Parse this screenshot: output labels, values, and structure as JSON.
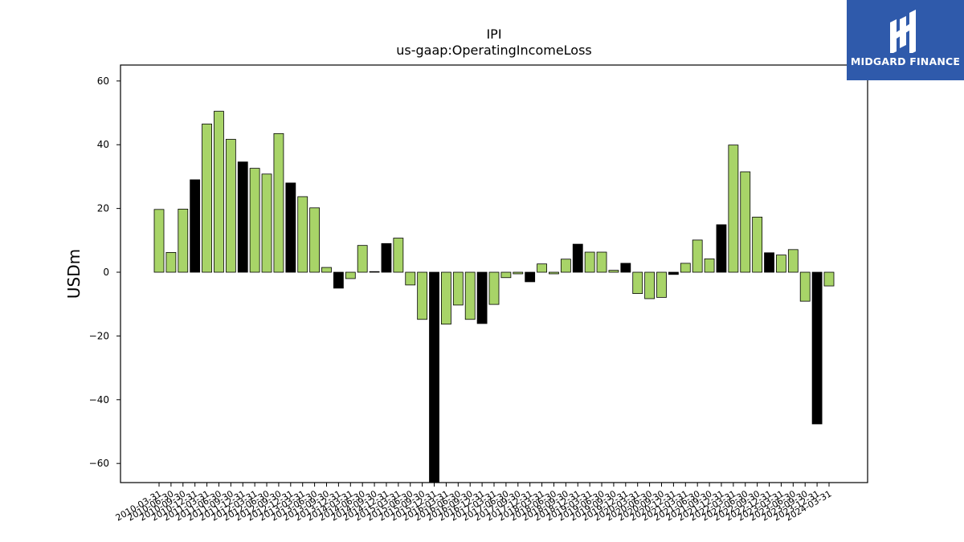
{
  "brand": {
    "name": "MIDGARD FINANCE",
    "bg_color": "#2f5aab",
    "icon": "midgard-logo-icon"
  },
  "chart_data": {
    "type": "bar",
    "title": "IPI",
    "subtitle": "us-gaap:OperatingIncomeLoss",
    "xlabel": "",
    "ylabel": "USDm",
    "ylim": [
      -66,
      65
    ],
    "yticks": [
      -60,
      -40,
      -20,
      0,
      20,
      40,
      60
    ],
    "colors": {
      "quarter": "#a8d468",
      "fiscal_year_end": "#000000",
      "edge": "#000000"
    },
    "categories": [
      "2010-03-31",
      "2010-06-30",
      "2010-09-30",
      "2010-12-31",
      "2011-03-31",
      "2011-06-30",
      "2011-09-30",
      "2011-12-31",
      "2012-03-31",
      "2012-06-30",
      "2012-09-30",
      "2012-12-31",
      "2013-03-31",
      "2013-06-30",
      "2013-09-30",
      "2013-12-31",
      "2014-03-31",
      "2014-06-30",
      "2014-09-30",
      "2014-12-31",
      "2015-03-31",
      "2015-06-30",
      "2015-09-30",
      "2015-12-31",
      "2016-03-31",
      "2016-06-30",
      "2016-09-30",
      "2016-12-31",
      "2017-03-31",
      "2017-06-30",
      "2017-09-30",
      "2017-12-31",
      "2018-03-31",
      "2018-06-30",
      "2018-09-30",
      "2018-12-31",
      "2019-03-31",
      "2019-06-30",
      "2019-09-30",
      "2019-12-31",
      "2020-03-31",
      "2020-06-30",
      "2020-09-30",
      "2020-12-31",
      "2021-03-31",
      "2021-06-30",
      "2021-09-30",
      "2021-12-31",
      "2022-03-31",
      "2022-06-30",
      "2022-09-30",
      "2022-12-31",
      "2023-03-31",
      "2023-06-30",
      "2023-09-30",
      "2023-12-31",
      "2024-03-31"
    ],
    "tick_labels": [
      "2010-03-31",
      "2010-06-30",
      "2010-09-30",
      "2010-12-31",
      "2011-03-31",
      "2011-06-30",
      "2011-09-30",
      "2011-12-31",
      "2012-03-31",
      "2012-06-30",
      "2012-09-30",
      "2012-12-31",
      "2013-03-31",
      "2013-06-30",
      "2013-09-30",
      "2013-12-31",
      "2014-03-31",
      "2014-06-30",
      "2014-09-30",
      "2014-12-31",
      "2015-03-31",
      "2015-06-30",
      "2015-09-30",
      "2015-12-31",
      "2016-03-31",
      "2016-06-30",
      "2016-09-30",
      "2016-12-31",
      "2017-03-31",
      "2017-06-30",
      "2017-09-30",
      "2017-12-31",
      "2018-03-31",
      "2018-06-30",
      "2018-09-30",
      "2018-12-31",
      "2019-03-31",
      "2019-06-30",
      "2019-09-30",
      "2019-12-31",
      "2020-03-31",
      "2020-06-30",
      "2020-09-30",
      "2020-12-31",
      "2021-03-31",
      "2021-06-30",
      "2021-09-30",
      "2021-12-31",
      "2022-03-31",
      "2022-06-30",
      "2022-09-30",
      "2022-12-31",
      "2023-03-31",
      "2023-06-30",
      "2023-09-30",
      "2023-12-31",
      "2024-03-31"
    ],
    "values": [
      19.7,
      6.2,
      19.8,
      29.0,
      46.5,
      50.5,
      41.7,
      34.6,
      32.6,
      30.8,
      43.5,
      28.0,
      23.7,
      20.2,
      1.5,
      -5.0,
      -2.0,
      8.4,
      0.2,
      9.0,
      10.7,
      -4.0,
      -14.8,
      -70.0,
      -16.3,
      -10.3,
      -14.8,
      -16.1,
      -10.1,
      -1.7,
      -0.5,
      -3.0,
      2.6,
      -0.5,
      4.1,
      8.8,
      6.3,
      6.3,
      0.6,
      2.8,
      -6.7,
      -8.3,
      -7.9,
      -0.7,
      2.8,
      10.1,
      4.2,
      14.9,
      39.9,
      31.5,
      17.3,
      6.1,
      5.4,
      7.1,
      -9.1,
      -47.6,
      -4.3
    ],
    "fiscal_year_end": [
      false,
      false,
      false,
      true,
      false,
      false,
      false,
      true,
      false,
      false,
      false,
      true,
      false,
      false,
      false,
      true,
      false,
      false,
      false,
      true,
      false,
      false,
      false,
      true,
      false,
      false,
      false,
      true,
      false,
      false,
      false,
      true,
      false,
      false,
      false,
      true,
      false,
      false,
      false,
      true,
      false,
      false,
      false,
      true,
      false,
      false,
      false,
      true,
      false,
      false,
      false,
      true,
      false,
      false,
      false,
      true,
      false
    ]
  }
}
